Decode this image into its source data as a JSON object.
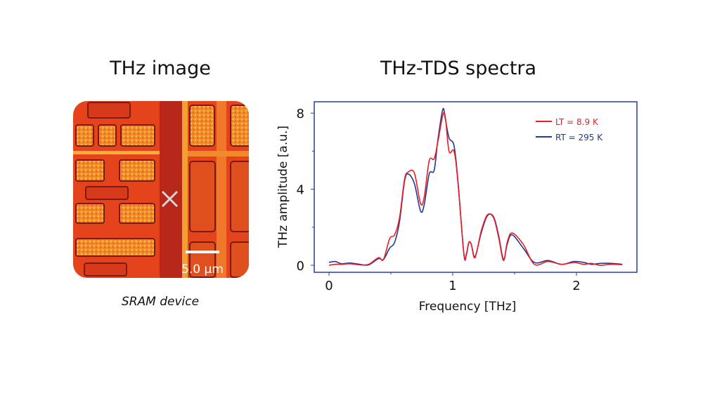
{
  "left_panel": {
    "title": "THz image",
    "caption": "SRAM device",
    "scale_bar_label": "5.0 µm",
    "marker_icon": "x-mark-icon"
  },
  "right_panel": {
    "title": "THz-TDS spectra"
  },
  "chart_data": {
    "type": "line",
    "xlabel": "Frequency [THz]",
    "ylabel": "THz amplitude [a.u.]",
    "xlim": [
      -0.12,
      2.48
    ],
    "ylim": [
      -0.4,
      8.5
    ],
    "xticks": [
      "0",
      "1",
      "2"
    ],
    "yticks": [
      "0",
      "4",
      "8"
    ],
    "xtick_values": [
      0,
      1,
      2
    ],
    "ytick_values": [
      0,
      4,
      8
    ],
    "grid": false,
    "legend_position": "top-right",
    "x": [
      0,
      0.05,
      0.1,
      0.17,
      0.25,
      0.32,
      0.4,
      0.44,
      0.49,
      0.53,
      0.57,
      0.61,
      0.64,
      0.69,
      0.74,
      0.77,
      0.81,
      0.85,
      0.88,
      0.92,
      0.94,
      0.97,
      1.01,
      1.04,
      1.09,
      1.11,
      1.13,
      1.15,
      1.18,
      1.23,
      1.28,
      1.33,
      1.37,
      1.41,
      1.44,
      1.48,
      1.57,
      1.66,
      1.77,
      1.88,
      1.98,
      2.06,
      2.12,
      2.19,
      2.28,
      2.37
    ],
    "series": [
      {
        "name": "LT = 8.9 K",
        "color": "#ee1c24",
        "values": [
          0,
          0.05,
          0.05,
          0.08,
          0.02,
          0.05,
          0.4,
          0.3,
          1.4,
          1.6,
          2.5,
          4.5,
          4.9,
          4.85,
          3.25,
          3.6,
          5.5,
          5.6,
          6.5,
          7.9,
          7.8,
          6.0,
          6.0,
          4.5,
          0.6,
          0.6,
          1.2,
          1.1,
          0.4,
          1.8,
          2.65,
          2.5,
          1.5,
          0.25,
          1.2,
          1.7,
          1.1,
          0.05,
          0.2,
          0.05,
          0.15,
          0.05,
          0.1,
          0.0,
          0.05,
          0.03
        ]
      },
      {
        "name": "RT = 295 K",
        "color": "#1f3a93",
        "values": [
          0.15,
          0.2,
          0.08,
          0.12,
          0.05,
          0.02,
          0.35,
          0.3,
          0.9,
          1.2,
          2.3,
          4.4,
          4.8,
          4.3,
          2.85,
          3.2,
          4.8,
          5.0,
          6.6,
          8.2,
          7.7,
          6.7,
          6.3,
          4.6,
          0.6,
          0.55,
          1.2,
          1.1,
          0.45,
          1.7,
          2.6,
          2.55,
          1.6,
          0.3,
          1.1,
          1.6,
          0.9,
          0.15,
          0.25,
          0.05,
          0.2,
          0.15,
          0.05,
          0.1,
          0.1,
          0.05
        ]
      }
    ]
  }
}
